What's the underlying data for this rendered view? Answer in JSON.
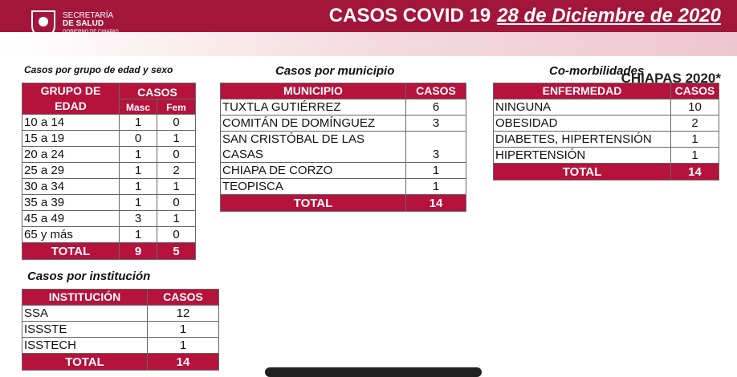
{
  "header": {
    "logo_line1": "SECRETARÍA",
    "logo_line2": "DE SALUD",
    "logo_line3": "GOBIERNO DE CHIAPAS",
    "title": "CASOS COVID 19",
    "date": "28 de Diciembre de 2020",
    "region": "CHIAPAS 2020*"
  },
  "age_table": {
    "caption": "Casos por grupo de edad y sexo",
    "header": {
      "group": "GRUPO DE EDAD",
      "cases": "CASOS",
      "masc": "Masc",
      "fem": "Fem"
    },
    "rows": [
      [
        "10 a 14",
        1,
        0
      ],
      [
        "15 a 19",
        0,
        1
      ],
      [
        "20 a 24",
        1,
        0
      ],
      [
        "25 a 29",
        1,
        2
      ],
      [
        "30 a 34",
        1,
        1
      ],
      [
        "35 a 39",
        1,
        0
      ],
      [
        "45 a 49",
        3,
        1
      ],
      [
        "65 y más",
        1,
        0
      ]
    ],
    "total": [
      "TOTAL",
      9,
      5
    ]
  },
  "municipio_table": {
    "caption": "Casos por municipio",
    "header": [
      "MUNICIPIO",
      "CASOS"
    ],
    "rows": [
      [
        "TUXTLA GUTIÉRREZ",
        6
      ],
      [
        "COMITÁN DE DOMÍNGUEZ",
        3
      ],
      [
        "SAN CRISTÓBAL DE LAS CASAS",
        3
      ],
      [
        "CHIAPA DE CORZO",
        1
      ],
      [
        "TEOPISCA",
        1
      ]
    ],
    "total": [
      "TOTAL",
      14
    ]
  },
  "comorbilidad_table": {
    "caption": "Co-morbilidades",
    "header": [
      "ENFERMEDAD",
      "CASOS"
    ],
    "rows": [
      [
        "NINGUNA",
        10
      ],
      [
        "OBESIDAD",
        2
      ],
      [
        "DIABETES, HIPERTENSIÓN",
        1
      ],
      [
        "HIPERTENSIÓN",
        1
      ]
    ],
    "total": [
      "TOTAL",
      14
    ]
  },
  "institucion_table": {
    "caption": "Casos por institución",
    "header": [
      "INSTITUCIÓN",
      "CASOS"
    ],
    "rows": [
      [
        "SSA",
        12
      ],
      [
        "ISSSTE",
        1
      ],
      [
        "ISSTECH",
        1
      ]
    ],
    "total": [
      "TOTAL",
      14
    ]
  }
}
